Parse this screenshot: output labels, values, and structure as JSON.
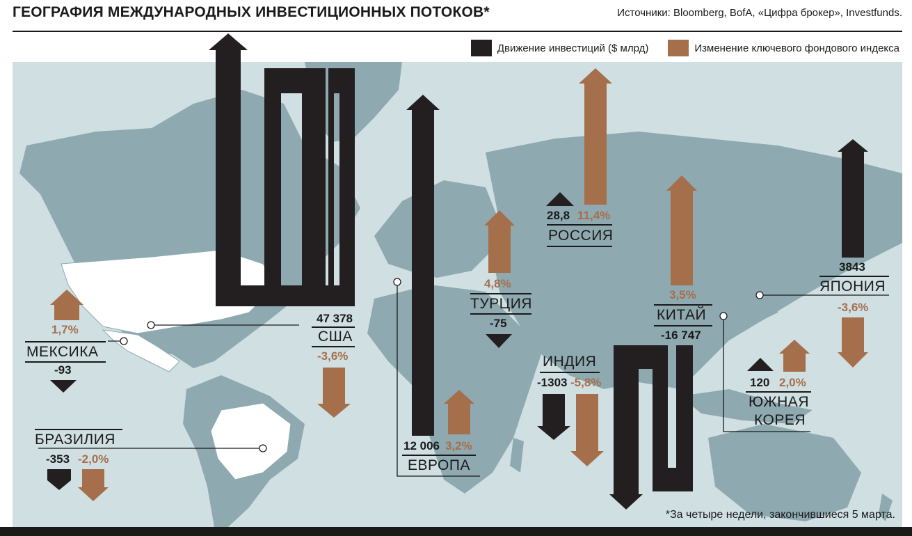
{
  "header": {
    "title": "ГЕОГРАФИЯ МЕЖДУНАРОДНЫХ ИНВЕСТИЦИОННЫХ ПОТОКОВ*",
    "sources": "Источники: Bloomberg, BofA, «Цифра брокер», Investfunds."
  },
  "legend": {
    "investment": {
      "label": "Движение инвестиций  ($ млрд)",
      "color": "#231f20"
    },
    "index": {
      "label": "Изменение ключевого фондового индекса",
      "color": "#a66f4c"
    }
  },
  "colors": {
    "ocean": "#cfdfe2",
    "land": "#8fa9b1",
    "highlight_land": "#ffffff",
    "investment": "#231f20",
    "index": "#a66f4c"
  },
  "countries": [
    {
      "key": "usa",
      "name": "США",
      "flow_label": "47 378",
      "index_label": "-3,6%",
      "flow": 47378,
      "index_change": -3.6
    },
    {
      "key": "mexico",
      "name": "МЕКСИКА",
      "flow_label": "-93",
      "index_label": "1,7%",
      "flow": -93,
      "index_change": 1.7
    },
    {
      "key": "brazil",
      "name": "БРАЗИЛИЯ",
      "flow_label": "-353",
      "index_label": "-2,0%",
      "flow": -353,
      "index_change": -2.0
    },
    {
      "key": "europe",
      "name": "ЕВРОПА",
      "flow_label": "12 006",
      "index_label": "3,2%",
      "flow": 12006,
      "index_change": 3.2
    },
    {
      "key": "turkey",
      "name": "ТУРЦИЯ",
      "flow_label": "-75",
      "index_label": "4,8%",
      "flow": -75,
      "index_change": 4.8
    },
    {
      "key": "russia",
      "name": "РОССИЯ",
      "flow_label": "28,8",
      "index_label": "11,4%",
      "flow": 28.8,
      "index_change": 11.4
    },
    {
      "key": "india",
      "name": "ИНДИЯ",
      "flow_label": "-1303",
      "index_label": "-5,8%",
      "flow": -1303,
      "index_change": -5.8
    },
    {
      "key": "china",
      "name": "КИТАЙ",
      "flow_label": "-16 747",
      "index_label": "3,5%",
      "flow": -16747,
      "index_change": 3.5
    },
    {
      "key": "japan",
      "name": "ЯПОНИЯ",
      "flow_label": "3843",
      "index_label": "-3,6%",
      "flow": 3843,
      "index_change": -3.6
    },
    {
      "key": "south_korea",
      "name_line1": "ЮЖНАЯ",
      "name_line2": "КОРЕЯ",
      "flow_label": "120",
      "index_label": "2,0%",
      "flow": 120,
      "index_change": 2.0
    }
  ],
  "footnote": "*За четыре недели, закончившиеся 5 марта."
}
